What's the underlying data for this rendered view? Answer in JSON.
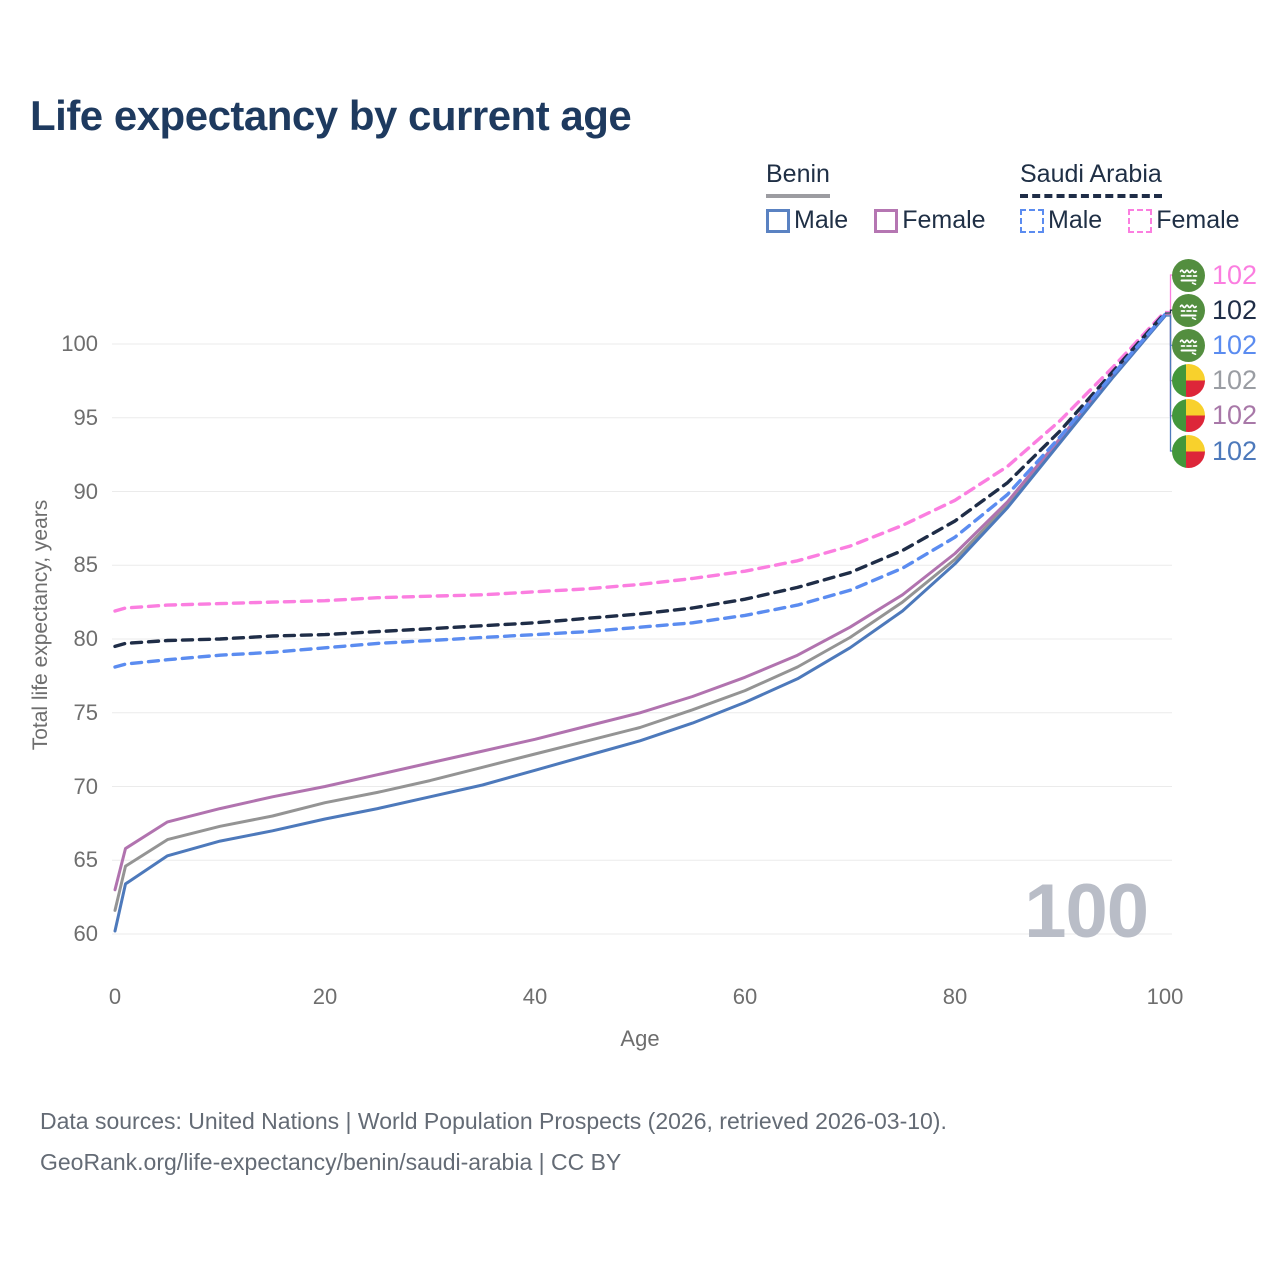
{
  "title": "Life expectancy by current age",
  "legend": {
    "groups": [
      {
        "label": "Benin",
        "underline": "solid",
        "items": [
          {
            "label": "Male",
            "color": "#5a82c2",
            "dash": false
          },
          {
            "label": "Female",
            "color": "#b576b2",
            "dash": false
          }
        ]
      },
      {
        "label": "Saudi Arabia",
        "underline": "dashed",
        "items": [
          {
            "label": "Male",
            "color": "#5b8cf0",
            "dash": true
          },
          {
            "label": "Female",
            "color": "#fb7ee0",
            "dash": true
          }
        ]
      }
    ]
  },
  "watermark": "100",
  "chart_data": {
    "type": "line",
    "title": "Life expectancy by current age",
    "xlabel": "Age",
    "ylabel": "Total life expectancy, years",
    "xlim": [
      0,
      100
    ],
    "ylim": [
      58,
      104
    ],
    "xticks": [
      0,
      20,
      40,
      60,
      80,
      100
    ],
    "yticks": [
      60,
      65,
      70,
      75,
      80,
      85,
      90,
      95,
      100
    ],
    "grid": "horizontal",
    "legend_position": "top-right",
    "x": [
      0,
      1,
      5,
      10,
      15,
      20,
      25,
      30,
      35,
      40,
      45,
      50,
      55,
      60,
      65,
      70,
      75,
      80,
      85,
      90,
      95,
      100
    ],
    "series": [
      {
        "name": "Saudi Arabia — Female",
        "country": "saudi-arabia",
        "sex": "female",
        "line": "dashed",
        "color": "#fb7ee0",
        "label_color": "#fb7ee0",
        "end_label": "102",
        "values": [
          81.9,
          82.1,
          82.3,
          82.4,
          82.5,
          82.6,
          82.8,
          82.9,
          83.0,
          83.2,
          83.4,
          83.7,
          84.1,
          84.6,
          85.3,
          86.3,
          87.7,
          89.4,
          91.7,
          94.8,
          98.4,
          102.2
        ]
      },
      {
        "name": "Saudi Arabia — Both sexes",
        "country": "saudi-arabia",
        "sex": "all",
        "line": "dashed",
        "color": "#1f2d47",
        "label_color": "#1f2d47",
        "end_label": "102",
        "values": [
          79.5,
          79.7,
          79.9,
          80.0,
          80.2,
          80.3,
          80.5,
          80.7,
          80.9,
          81.1,
          81.4,
          81.7,
          82.1,
          82.7,
          83.5,
          84.5,
          86.0,
          88.0,
          90.6,
          94.1,
          98.1,
          102.1
        ]
      },
      {
        "name": "Saudi Arabia — Male",
        "country": "saudi-arabia",
        "sex": "male",
        "line": "dashed",
        "color": "#5b8cf0",
        "label_color": "#5b8cf0",
        "end_label": "102",
        "values": [
          78.1,
          78.3,
          78.6,
          78.9,
          79.1,
          79.4,
          79.7,
          79.9,
          80.1,
          80.3,
          80.5,
          80.8,
          81.1,
          81.6,
          82.3,
          83.3,
          84.8,
          86.9,
          89.8,
          93.7,
          97.9,
          102.0
        ]
      },
      {
        "name": "Benin — Both sexes",
        "country": "benin",
        "sex": "all",
        "line": "solid",
        "color": "#949494",
        "label_color": "#9a9da3",
        "end_label": "102",
        "values": [
          61.6,
          64.6,
          66.4,
          67.3,
          68.0,
          68.9,
          69.6,
          70.4,
          71.3,
          72.2,
          73.1,
          74.0,
          75.2,
          76.5,
          78.1,
          80.1,
          82.5,
          85.4,
          89.1,
          93.4,
          97.8,
          102.0
        ]
      },
      {
        "name": "Benin — Female",
        "country": "benin",
        "sex": "female",
        "line": "solid",
        "color": "#b173af",
        "label_color": "#a878a8",
        "end_label": "102",
        "values": [
          63.0,
          65.8,
          67.6,
          68.5,
          69.3,
          70.0,
          70.8,
          71.6,
          72.4,
          73.2,
          74.1,
          75.0,
          76.1,
          77.4,
          78.9,
          80.8,
          83.0,
          85.8,
          89.3,
          93.6,
          97.9,
          102.0
        ]
      },
      {
        "name": "Benin — Male",
        "country": "benin",
        "sex": "male",
        "line": "solid",
        "color": "#4d79bb",
        "label_color": "#4d79bb",
        "end_label": "102",
        "values": [
          60.2,
          63.4,
          65.3,
          66.3,
          67.0,
          67.8,
          68.5,
          69.3,
          70.1,
          71.1,
          72.1,
          73.1,
          74.3,
          75.7,
          77.3,
          79.4,
          81.9,
          85.1,
          88.9,
          93.3,
          97.7,
          101.9
        ]
      }
    ]
  },
  "footer": {
    "line1": "Data sources: United Nations | World Population Prospects (2026, retrieved 2026-03-10).",
    "line2": "GeoRank.org/life-expectancy/benin/saudi-arabia | CC BY"
  }
}
